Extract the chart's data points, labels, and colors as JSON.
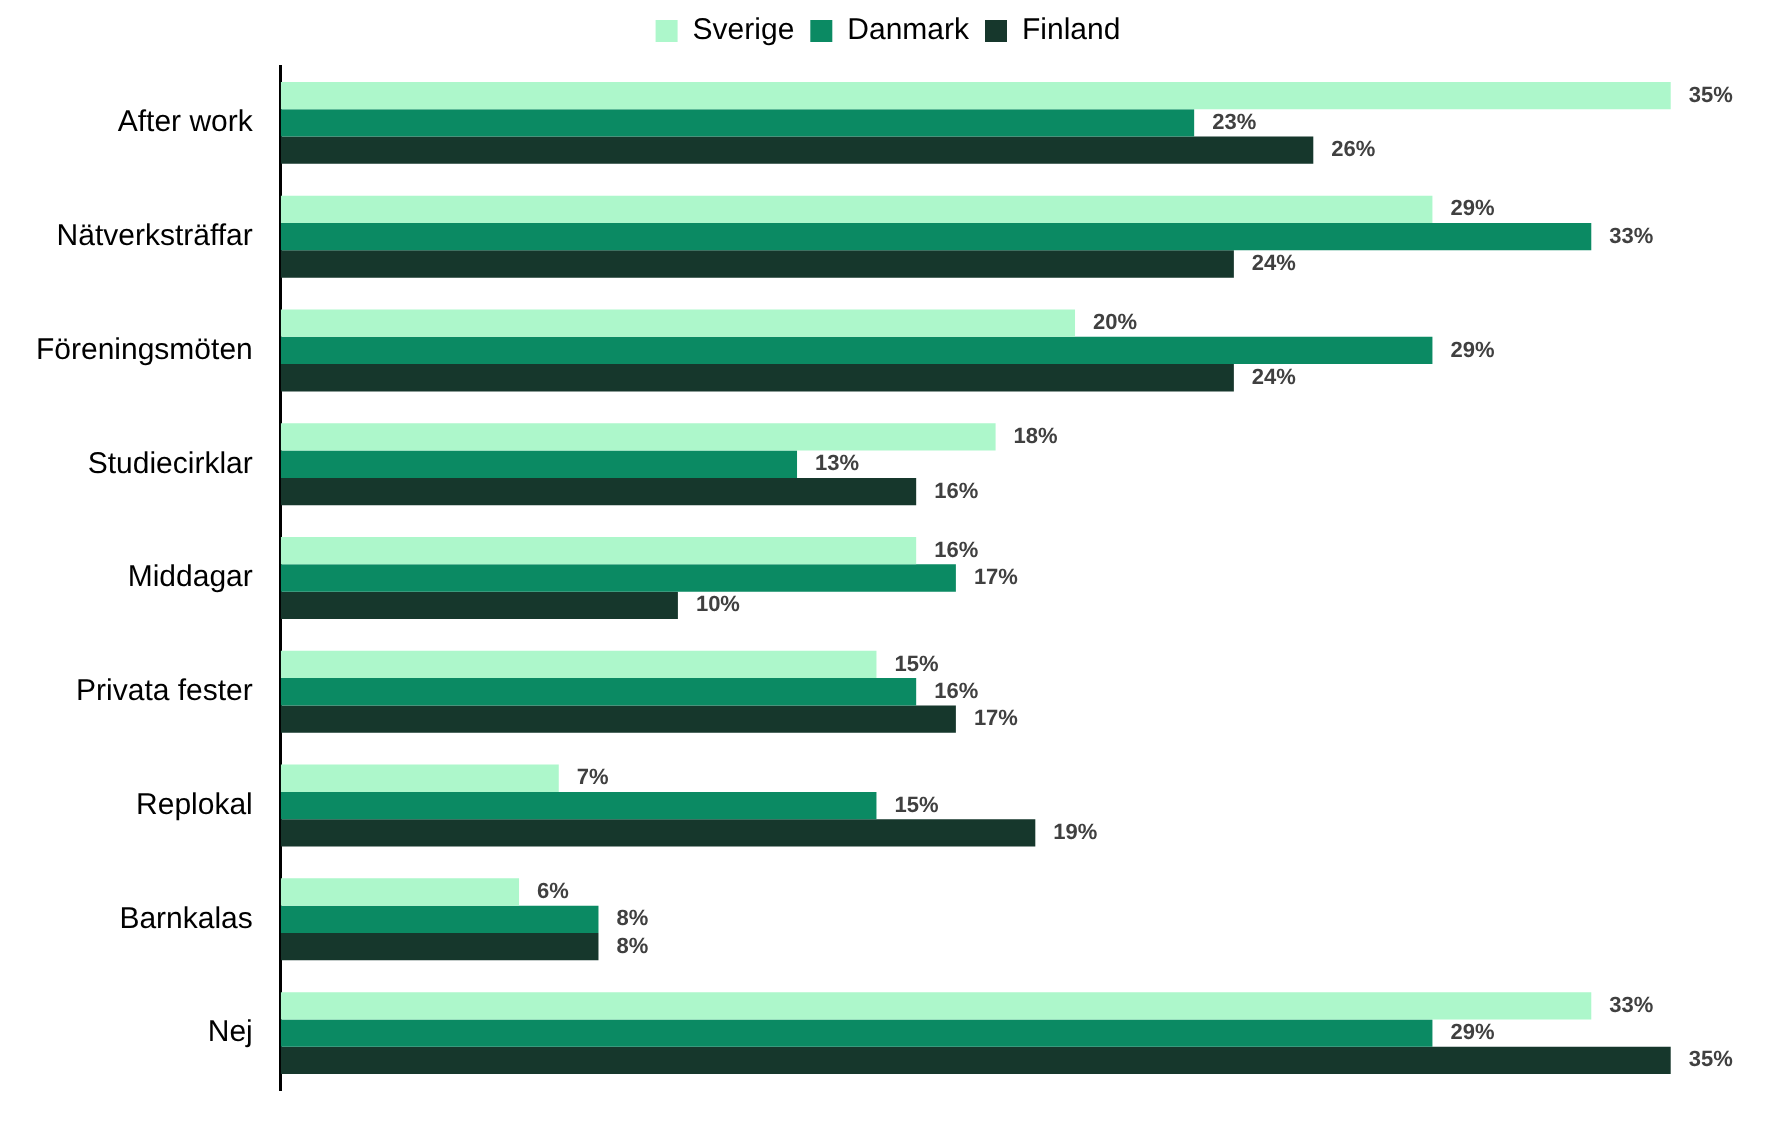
{
  "chart_data": {
    "type": "bar",
    "orientation": "horizontal",
    "legend": "top",
    "categories": [
      "After work",
      "Nätverksträffar",
      "Föreningsmöten",
      "Studiecirklar",
      "Middagar",
      "Privata fester",
      "Replokal",
      "Barnkalas",
      "Nej"
    ],
    "series": [
      {
        "name": "Sverige",
        "color": "#adf7cb",
        "values": [
          35,
          29,
          20,
          18,
          16,
          15,
          7,
          6,
          33
        ],
        "value_labels": [
          "35%",
          "29%",
          "20%",
          "18%",
          "16%",
          "15%",
          "7%",
          "6%",
          "33%"
        ]
      },
      {
        "name": "Danmark",
        "color": "#0b8a63",
        "values": [
          23,
          33,
          29,
          13,
          17,
          16,
          15,
          8,
          29
        ],
        "value_labels": [
          "23%",
          "33%",
          "29%",
          "13%",
          "17%",
          "16%",
          "15%",
          "8%",
          "29%"
        ]
      },
      {
        "name": "Finland",
        "color": "#16372c",
        "values": [
          26,
          24,
          24,
          16,
          10,
          17,
          19,
          8,
          35
        ],
        "value_labels": [
          "26%",
          "24%",
          "24%",
          "16%",
          "10%",
          "17%",
          "19%",
          "8%",
          "35%"
        ]
      }
    ]
  }
}
